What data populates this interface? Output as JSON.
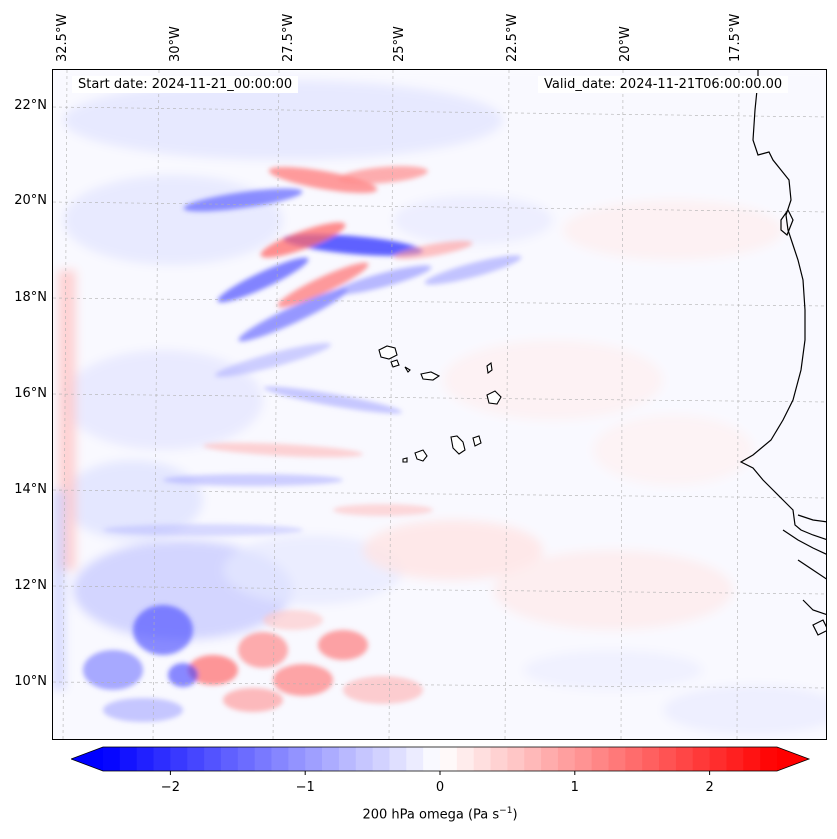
{
  "map": {
    "start_date": "Start date: 2024-11-21_00:00:00",
    "valid_date": "Valid_date: 2024-11-21T06:00:00.00",
    "lon_labels": [
      "32.5°W",
      "30°W",
      "27.5°W",
      "25°W",
      "22.5°W",
      "20°W",
      "17.5°W"
    ],
    "lat_labels": [
      "22°N",
      "20°N",
      "18°N",
      "16°N",
      "14°N",
      "12°N",
      "10°N"
    ],
    "field": "200 hPa omega",
    "units": "Pa s",
    "units_exponent": "−1",
    "colormap": [
      "#0000ff",
      "#ffffff",
      "#ff0000"
    ]
  },
  "colorbar": {
    "ticks": [
      "−2",
      "−1",
      "0",
      "1",
      "2"
    ],
    "tick_values": [
      -2,
      -1,
      0,
      1,
      2
    ],
    "range": [
      -2.5,
      2.5
    ],
    "label_prefix": "200 hPa omega (Pa s",
    "label_exp": "−1",
    "label_suffix": ")"
  }
}
